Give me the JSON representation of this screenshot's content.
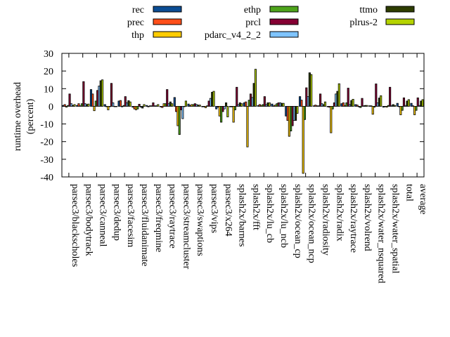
{
  "chart_data": {
    "type": "bar",
    "title": "",
    "xlabel": "",
    "ylabel": [
      "runtime overhead",
      "(percent)"
    ],
    "ylim": [
      -40,
      30
    ],
    "yticks": [
      -40,
      -30,
      -20,
      -10,
      0,
      10,
      20,
      30
    ],
    "legend_placement": "top",
    "categories": [
      "parsec3/blackscholes",
      "parsec3/bodytrack",
      "parsec3/canneal",
      "parsec3/dedup",
      "parsec3/facesim",
      "parsec3/fluidanimate",
      "parsec3/freqmine",
      "parsec3/raytrace",
      "parsec3/streamcluster",
      "parsec3/swaptions",
      "parsec3/vips",
      "parsec3/x264",
      "splash2x/barnes",
      "splash2x/fft",
      "splash2x/lu_cb",
      "splash2x/lu_ncb",
      "splash2x/ocean_cp",
      "splash2x/ocean_ncp",
      "splash2x/radiosity",
      "splash2x/radix",
      "splash2x/raytrace",
      "splash2x/volrend",
      "splash2x/water_nsquared",
      "splash2x/water_spatial",
      "total",
      "average"
    ],
    "series": [
      {
        "name": "rec",
        "color": "#0b4d94",
        "values": [
          0.5,
          0.5,
          9.5,
          1,
          3,
          -0.5,
          0.5,
          -0.3,
          5,
          1.3,
          -0.3,
          -1.5,
          -0.3,
          2,
          0.5,
          1.3,
          -5.5,
          5.5,
          0.3,
          -0.3,
          1.5,
          1,
          0.3,
          -0.5,
          1.7,
          1.7
        ]
      },
      {
        "name": "prec",
        "color": "#ff4f1a",
        "values": [
          1,
          1.5,
          7,
          0,
          3.3,
          -1.5,
          -0.3,
          -0.7,
          -3,
          0.5,
          -0.3,
          -0.5,
          -0.3,
          2.5,
          1,
          0.3,
          -8,
          3.5,
          0.7,
          -0.5,
          2,
          0.7,
          0.3,
          0,
          0,
          0.3
        ]
      },
      {
        "name": "thp",
        "color": "#ffcc00",
        "values": [
          -0.5,
          0.3,
          -2.5,
          -2,
          -0.3,
          -2,
          0.3,
          1.5,
          -11,
          1,
          -0.8,
          -5.5,
          -9,
          -23,
          0.5,
          0.7,
          -17,
          -38,
          0.3,
          -15,
          0.5,
          -0.3,
          -4.5,
          -0.5,
          -4.8,
          -4.8
        ]
      },
      {
        "name": "ethp",
        "color": "#4ea41b",
        "values": [
          0.5,
          1.5,
          3,
          0,
          0.5,
          -1.5,
          0.3,
          1.5,
          -16,
          1,
          0.3,
          -9,
          -2,
          3.5,
          1,
          1.5,
          -14,
          -7.5,
          0.3,
          -1.5,
          2,
          -0.7,
          -0.5,
          0.5,
          -2.3,
          -2.3
        ]
      },
      {
        "name": "prcl",
        "color": "#850033",
        "values": [
          7,
          14,
          9,
          13,
          5.5,
          1.2,
          2,
          9.5,
          -2,
          1.5,
          3,
          -3,
          10.8,
          7,
          5.5,
          2,
          -11,
          10.5,
          7,
          2,
          10.3,
          4.5,
          12.7,
          10.8,
          4.8,
          4.8
        ]
      },
      {
        "name": "pdarc_v4_2_2",
        "color": "#7fc4ff",
        "values": [
          1.5,
          1.5,
          11.5,
          2,
          2,
          -0.5,
          0.3,
          1.5,
          -7,
          1,
          4.5,
          -1.5,
          1,
          5,
          1,
          2,
          -8,
          5.5,
          1.5,
          7,
          1,
          0.3,
          2,
          0.5,
          0.5,
          0.5
        ]
      },
      {
        "name": "ttmo",
        "color": "#2e3d00",
        "values": [
          0.5,
          1,
          14.5,
          0,
          3.2,
          -1,
          0.3,
          2.5,
          0,
          0.7,
          8,
          2,
          2,
          13,
          2,
          1.7,
          -8,
          19,
          1,
          8.5,
          3.3,
          0.5,
          4.7,
          1,
          3,
          3
        ]
      },
      {
        "name": "plrus-2",
        "color": "#b5d300",
        "values": [
          1,
          1.3,
          15,
          0,
          2.5,
          1,
          1,
          1.5,
          3,
          0.7,
          8.5,
          -6,
          1.5,
          21,
          2,
          1.7,
          -4,
          18,
          2.5,
          12.8,
          4,
          0.5,
          6,
          0.5,
          3.8,
          3.8
        ]
      }
    ]
  }
}
